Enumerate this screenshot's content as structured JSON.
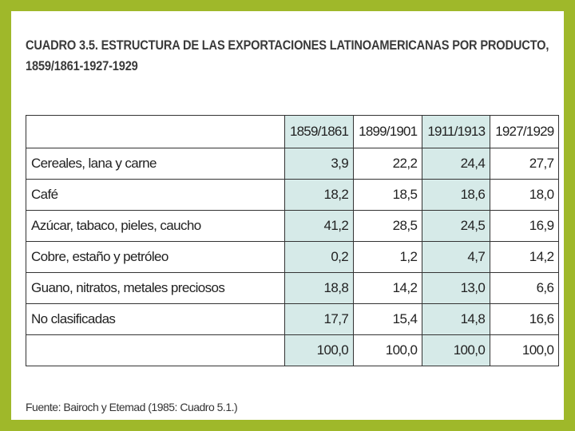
{
  "title_line1": "CUADRO 3.5. ESTRUCTURA DE LAS EXPORTACIONES LATINOAMERICANAS POR PRODUCTO,",
  "title_line2": "1859/1861-1927-1929",
  "columns": [
    "",
    "1859/1861",
    "1899/1901",
    "1911/1913",
    "1927/1929"
  ],
  "highlight_color": "#d6eae8",
  "rows": [
    {
      "label": "Cereales, lana y carne",
      "values": [
        "3,9",
        "22,2",
        "24,4",
        "27,7"
      ]
    },
    {
      "label": "Café",
      "values": [
        "18,2",
        "18,5",
        "18,6",
        "18,0"
      ]
    },
    {
      "label": "Azúcar, tabaco, pieles, caucho",
      "values": [
        "41,2",
        "28,5",
        "24,5",
        "16,9"
      ]
    },
    {
      "label": "Cobre, estaño y petróleo",
      "values": [
        "0,2",
        "1,2",
        "4,7",
        "14,2"
      ]
    },
    {
      "label": "Guano, nitratos, metales preciosos",
      "values": [
        "18,8",
        "14,2",
        "13,0",
        "6,6"
      ]
    },
    {
      "label": "No clasificadas",
      "values": [
        "17,7",
        "15,4",
        "14,8",
        "16,6"
      ]
    },
    {
      "label": "",
      "values": [
        "100,0",
        "100,0",
        "100,0",
        "100,0"
      ]
    }
  ],
  "source": "Fuente: Bairoch y Etemad (1985: Cuadro 5.1.)"
}
